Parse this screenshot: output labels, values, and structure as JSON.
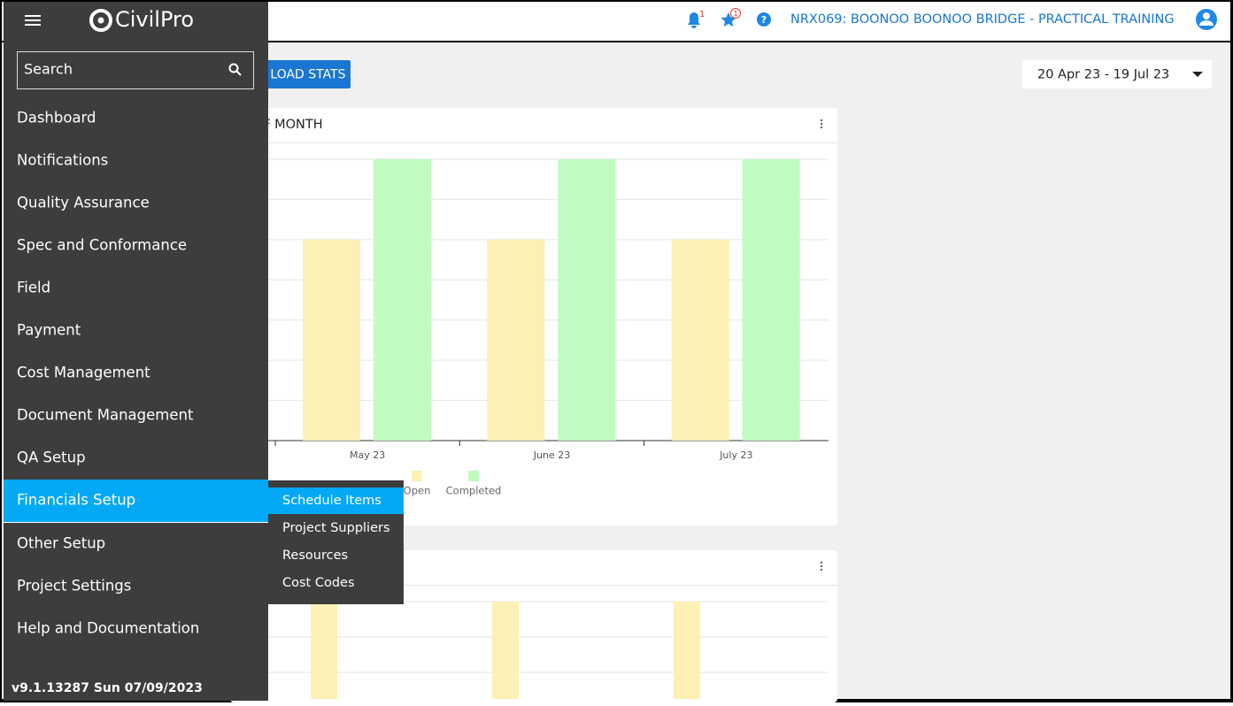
{
  "header": {
    "logo": "CivilPro",
    "project": "NRX069: BOONOO BOONOO BRIDGE - PRACTICAL TRAINING",
    "notification_count": "1",
    "favorite_count": "1"
  },
  "sidebar": {
    "search_placeholder": "Search",
    "menu": [
      "Dashboard",
      "Notifications",
      "Quality Assurance",
      "Spec and Conformance",
      "Field",
      "Payment",
      "Cost Management",
      "Document Management",
      "QA Setup",
      "Financials Setup",
      "Other Setup",
      "Project Settings",
      "Help and Documentation"
    ],
    "version": "v9.1.13287 Sun 07/09/2023"
  },
  "submenu": {
    "items": [
      "Schedule Items",
      "Project Suppliers",
      "Resources",
      "Cost Codes"
    ]
  },
  "toolbar": {
    "button": "LOAD STATS",
    "date_range": "20 Apr 23 - 19 Jul 23"
  },
  "chart_data": {
    "type": "bar",
    "title": "D OF MONTH",
    "categories": [
      "May 23",
      "June 23",
      "July 23"
    ],
    "series": [
      {
        "name": "Open",
        "color": "#fdf0b4",
        "values": [
          5,
          5,
          5
        ]
      },
      {
        "name": "Completed",
        "color": "#c0fcc0",
        "values": [
          7,
          7,
          7
        ]
      }
    ],
    "ylim": [
      0,
      7
    ],
    "yticks": [
      0,
      1,
      2,
      3,
      4,
      5,
      6,
      7
    ],
    "grid": true
  }
}
